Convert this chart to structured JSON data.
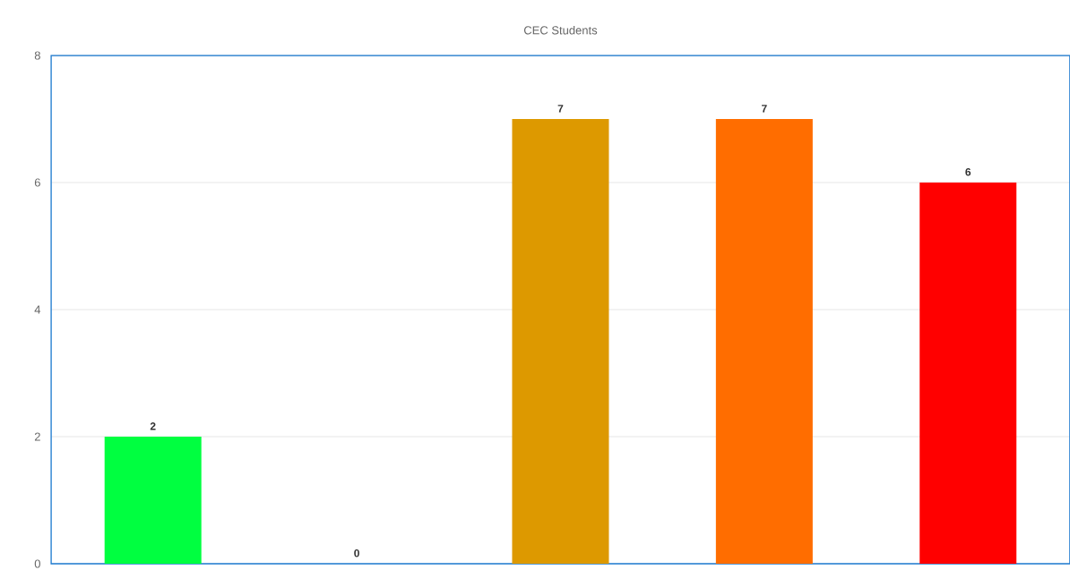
{
  "chart_data": {
    "type": "bar",
    "title": "CEC Students",
    "categories": [
      null,
      null,
      null,
      null,
      null
    ],
    "values": [
      2,
      0,
      7,
      7,
      6
    ],
    "colors": [
      "#00ff40",
      "#3366cc",
      "#dd9900",
      "#ff6d00",
      "#ff0000"
    ],
    "ylim": [
      0,
      8
    ],
    "yticks": [
      0,
      2,
      4,
      6,
      8
    ],
    "grid": "y",
    "data_labels": true
  }
}
